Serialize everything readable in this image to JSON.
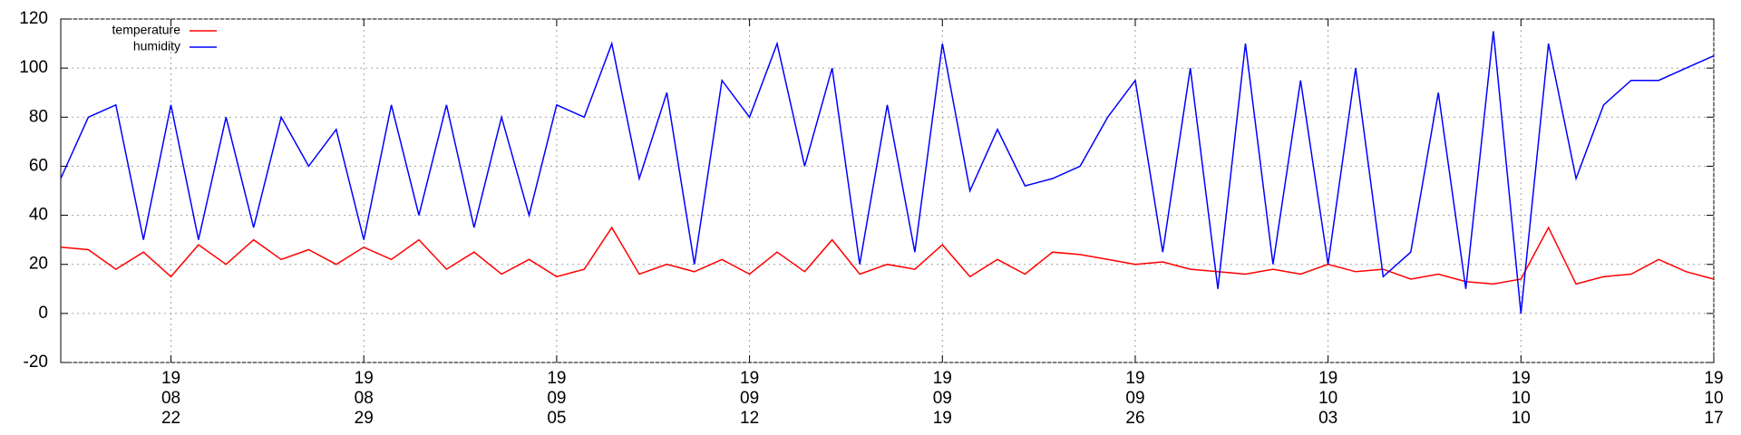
{
  "chart_data": {
    "type": "line",
    "x": [
      "2019-08-18",
      "2019-08-19",
      "2019-08-20",
      "2019-08-21",
      "2019-08-22",
      "2019-08-23",
      "2019-08-24",
      "2019-08-25",
      "2019-08-26",
      "2019-08-27",
      "2019-08-28",
      "2019-08-29",
      "2019-08-30",
      "2019-08-31",
      "2019-09-01",
      "2019-09-02",
      "2019-09-03",
      "2019-09-04",
      "2019-09-05",
      "2019-09-06",
      "2019-09-07",
      "2019-09-08",
      "2019-09-09",
      "2019-09-10",
      "2019-09-11",
      "2019-09-12",
      "2019-09-13",
      "2019-09-14",
      "2019-09-15",
      "2019-09-16",
      "2019-09-17",
      "2019-09-18",
      "2019-09-19",
      "2019-09-20",
      "2019-09-21",
      "2019-09-22",
      "2019-09-23",
      "2019-09-24",
      "2019-09-25",
      "2019-09-26",
      "2019-09-27",
      "2019-09-28",
      "2019-09-29",
      "2019-09-30",
      "2019-10-01",
      "2019-10-02",
      "2019-10-03",
      "2019-10-04",
      "2019-10-05",
      "2019-10-06",
      "2019-10-07",
      "2019-10-08",
      "2019-10-09",
      "2019-10-10",
      "2019-10-11",
      "2019-10-12",
      "2019-10-13",
      "2019-10-14",
      "2019-10-15",
      "2019-10-16",
      "2019-10-17"
    ],
    "series": [
      {
        "name": "temperature",
        "color": "#ff0000",
        "values": [
          27,
          26,
          18,
          25,
          15,
          28,
          20,
          30,
          22,
          26,
          20,
          27,
          22,
          30,
          18,
          25,
          16,
          22,
          15,
          18,
          35,
          16,
          20,
          17,
          22,
          16,
          25,
          17,
          30,
          16,
          20,
          18,
          28,
          15,
          22,
          16,
          25,
          24,
          22,
          20,
          21,
          18,
          17,
          16,
          18,
          16,
          20,
          17,
          18,
          14,
          16,
          13,
          12,
          14,
          35,
          12,
          15,
          16,
          22,
          17,
          14
        ]
      },
      {
        "name": "humidity",
        "color": "#0000ff",
        "values": [
          55,
          80,
          85,
          30,
          85,
          30,
          80,
          35,
          80,
          60,
          75,
          30,
          85,
          40,
          85,
          35,
          80,
          40,
          85,
          80,
          110,
          55,
          90,
          20,
          95,
          80,
          110,
          60,
          100,
          20,
          85,
          25,
          110,
          50,
          75,
          52,
          55,
          60,
          80,
          95,
          25,
          100,
          10,
          110,
          20,
          95,
          20,
          100,
          15,
          25,
          90,
          10,
          115,
          0,
          110,
          55,
          85,
          95,
          95,
          100,
          105
        ]
      }
    ],
    "xlim": [
      "2019-08-18",
      "2019-10-17"
    ],
    "xticks": [
      {
        "value": "2019-08-22",
        "label": [
          "19",
          "08",
          "22"
        ]
      },
      {
        "value": "2019-08-29",
        "label": [
          "19",
          "08",
          "29"
        ]
      },
      {
        "value": "2019-09-05",
        "label": [
          "19",
          "09",
          "05"
        ]
      },
      {
        "value": "2019-09-12",
        "label": [
          "19",
          "09",
          "12"
        ]
      },
      {
        "value": "2019-09-19",
        "label": [
          "19",
          "09",
          "19"
        ]
      },
      {
        "value": "2019-09-26",
        "label": [
          "19",
          "09",
          "26"
        ]
      },
      {
        "value": "2019-10-03",
        "label": [
          "19",
          "10",
          "03"
        ]
      },
      {
        "value": "2019-10-10",
        "label": [
          "19",
          "10",
          "10"
        ]
      },
      {
        "value": "2019-10-17",
        "label": [
          "19",
          "10",
          "17"
        ]
      }
    ],
    "ylim": [
      -20,
      120
    ],
    "yticks": [
      -20,
      0,
      20,
      40,
      60,
      80,
      100,
      120
    ],
    "grid": true,
    "legend": "top-left"
  }
}
